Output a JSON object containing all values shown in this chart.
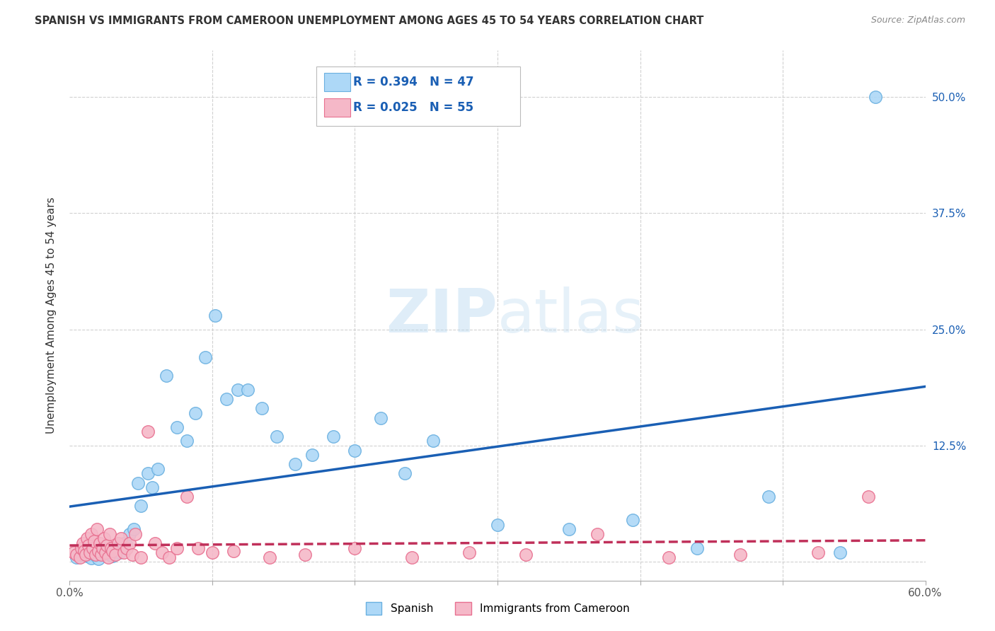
{
  "title": "SPANISH VS IMMIGRANTS FROM CAMEROON UNEMPLOYMENT AMONG AGES 45 TO 54 YEARS CORRELATION CHART",
  "source": "Source: ZipAtlas.com",
  "ylabel": "Unemployment Among Ages 45 to 54 years",
  "xlim": [
    0.0,
    0.6
  ],
  "ylim": [
    -0.02,
    0.55
  ],
  "yticks": [
    0.0,
    0.125,
    0.25,
    0.375,
    0.5
  ],
  "yticklabels": [
    "",
    "12.5%",
    "25.0%",
    "37.5%",
    "50.0%"
  ],
  "grid_color": "#cccccc",
  "background_color": "#ffffff",
  "spanish_color": "#add8f7",
  "cameroon_color": "#f5b8c8",
  "spanish_edge": "#6ab0e0",
  "cameroon_edge": "#e87090",
  "trend_spanish_color": "#1a5fb4",
  "trend_cameroon_color": "#c0305a",
  "R_spanish": 0.394,
  "N_spanish": 47,
  "R_cameroon": 0.025,
  "N_cameroon": 55,
  "spanish_x": [
    0.005,
    0.008,
    0.01,
    0.012,
    0.015,
    0.018,
    0.02,
    0.022,
    0.025,
    0.028,
    0.03,
    0.032,
    0.035,
    0.038,
    0.04,
    0.042,
    0.045,
    0.048,
    0.05,
    0.055,
    0.058,
    0.062,
    0.068,
    0.075,
    0.082,
    0.088,
    0.095,
    0.102,
    0.11,
    0.118,
    0.125,
    0.135,
    0.145,
    0.158,
    0.17,
    0.185,
    0.2,
    0.218,
    0.235,
    0.255,
    0.3,
    0.35,
    0.395,
    0.44,
    0.49,
    0.54,
    0.565
  ],
  "spanish_y": [
    0.005,
    0.008,
    0.01,
    0.006,
    0.004,
    0.007,
    0.003,
    0.01,
    0.012,
    0.008,
    0.006,
    0.015,
    0.01,
    0.02,
    0.018,
    0.03,
    0.035,
    0.085,
    0.06,
    0.095,
    0.08,
    0.1,
    0.2,
    0.145,
    0.13,
    0.16,
    0.22,
    0.265,
    0.175,
    0.185,
    0.185,
    0.165,
    0.135,
    0.105,
    0.115,
    0.135,
    0.12,
    0.155,
    0.095,
    0.13,
    0.04,
    0.035,
    0.045,
    0.015,
    0.07,
    0.01,
    0.5
  ],
  "cameroon_x": [
    0.003,
    0.005,
    0.007,
    0.008,
    0.009,
    0.01,
    0.011,
    0.012,
    0.013,
    0.014,
    0.015,
    0.016,
    0.017,
    0.018,
    0.019,
    0.02,
    0.021,
    0.022,
    0.023,
    0.024,
    0.025,
    0.026,
    0.027,
    0.028,
    0.029,
    0.03,
    0.032,
    0.034,
    0.036,
    0.038,
    0.04,
    0.042,
    0.044,
    0.046,
    0.05,
    0.055,
    0.06,
    0.065,
    0.07,
    0.075,
    0.082,
    0.09,
    0.1,
    0.115,
    0.14,
    0.165,
    0.2,
    0.24,
    0.28,
    0.32,
    0.37,
    0.42,
    0.47,
    0.525,
    0.56
  ],
  "cameroon_y": [
    0.01,
    0.008,
    0.005,
    0.015,
    0.02,
    0.012,
    0.008,
    0.025,
    0.018,
    0.01,
    0.03,
    0.015,
    0.022,
    0.008,
    0.035,
    0.012,
    0.02,
    0.008,
    0.015,
    0.025,
    0.01,
    0.018,
    0.005,
    0.03,
    0.015,
    0.012,
    0.008,
    0.02,
    0.025,
    0.01,
    0.015,
    0.02,
    0.008,
    0.03,
    0.005,
    0.14,
    0.02,
    0.01,
    0.005,
    0.015,
    0.07,
    0.015,
    0.01,
    0.012,
    0.005,
    0.008,
    0.015,
    0.005,
    0.01,
    0.008,
    0.03,
    0.005,
    0.008,
    0.01,
    0.07
  ],
  "legend_spanish_fill": "#add8f7",
  "legend_cameroon_fill": "#f5b8c8",
  "legend_text_color": "#1a5fb4",
  "legend_N_color": "#e05080"
}
